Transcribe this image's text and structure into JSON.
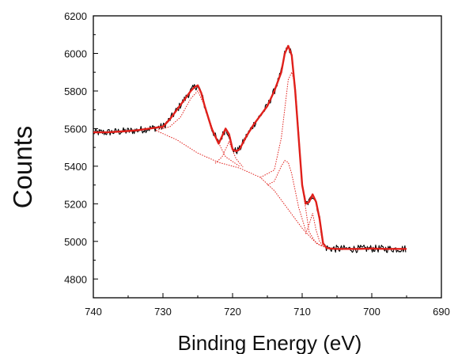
{
  "chart_data": {
    "type": "line",
    "title": "",
    "xlabel": "Binding Energy (eV)",
    "ylabel": "Counts",
    "x_reversed": true,
    "xlim": [
      740,
      690
    ],
    "ylim": [
      4700,
      6200
    ],
    "xticks": [
      "740",
      "730",
      "720",
      "710",
      "700",
      "690"
    ],
    "yticks": [
      "4800",
      "5000",
      "5200",
      "5400",
      "5600",
      "5800",
      "6000",
      "6200"
    ],
    "grid": false,
    "legend": "none",
    "colors": {
      "data": "#000000",
      "fit": "#e0201b",
      "components": "#e0201b"
    },
    "series": [
      {
        "style": "noisy-data",
        "x": [
          740,
          738,
          736,
          734,
          732,
          730,
          729,
          728,
          727,
          726,
          725.5,
          725,
          724.5,
          724,
          723,
          722,
          721.5,
          721,
          720.5,
          720,
          719.5,
          719,
          718,
          717,
          716,
          715,
          714,
          713,
          712.5,
          712,
          711.5,
          711,
          710.5,
          710,
          709.5,
          709,
          708.5,
          708,
          707.5,
          707,
          706.5,
          706,
          705,
          702,
          700,
          698,
          695
        ],
        "y": [
          5580,
          5580,
          5585,
          5590,
          5600,
          5610,
          5650,
          5700,
          5750,
          5800,
          5820,
          5830,
          5790,
          5720,
          5600,
          5520,
          5560,
          5600,
          5570,
          5490,
          5480,
          5490,
          5560,
          5620,
          5670,
          5720,
          5800,
          5900,
          6000,
          6040,
          5990,
          5800,
          5550,
          5300,
          5200,
          5210,
          5250,
          5210,
          5120,
          4990,
          4965,
          4962,
          4960,
          4960,
          4962,
          4960,
          4960
        ]
      },
      {
        "style": "fit-envelope",
        "x": [
          740,
          738,
          736,
          734,
          732,
          730,
          729,
          728,
          727,
          726,
          725.5,
          725,
          724.5,
          724,
          723,
          722,
          721.5,
          721,
          720.5,
          720,
          719.5,
          719,
          718,
          717,
          716,
          715,
          714,
          713,
          712.5,
          712,
          711.5,
          711,
          710.5,
          710,
          709.5,
          709,
          708.5,
          708,
          707.5,
          707,
          706.5,
          706,
          705,
          702,
          700,
          698,
          695
        ],
        "y": [
          5580,
          5580,
          5585,
          5590,
          5600,
          5610,
          5650,
          5700,
          5750,
          5800,
          5820,
          5830,
          5790,
          5720,
          5600,
          5520,
          5560,
          5600,
          5570,
          5490,
          5480,
          5490,
          5560,
          5620,
          5670,
          5720,
          5800,
          5900,
          6000,
          6040,
          5990,
          5800,
          5550,
          5300,
          5200,
          5210,
          5250,
          5210,
          5120,
          4990,
          4965,
          4962,
          4960,
          4960,
          4962,
          4960,
          4960
        ]
      },
      {
        "style": "background",
        "x": [
          731,
          728,
          725,
          722,
          719,
          716,
          714,
          712,
          710,
          708.5,
          707.5,
          706.5
        ],
        "y": [
          5590,
          5540,
          5470,
          5420,
          5390,
          5340,
          5270,
          5170,
          5070,
          5010,
          4980,
          4965
        ]
      },
      {
        "style": "component",
        "x": [
          731,
          729,
          727.5,
          726,
          725,
          724,
          722.5,
          721,
          719
        ],
        "y": [
          5590,
          5610,
          5660,
          5760,
          5800,
          5720,
          5560,
          5450,
          5400
        ]
      },
      {
        "style": "component",
        "x": [
          722.5,
          721.5,
          720.5,
          719.5,
          718.5
        ],
        "y": [
          5415,
          5450,
          5530,
          5440,
          5395
        ]
      },
      {
        "style": "component",
        "x": [
          716,
          714,
          713,
          712,
          711.5,
          711,
          710.5,
          710,
          709,
          708,
          707
        ],
        "y": [
          5340,
          5380,
          5550,
          5860,
          5900,
          5830,
          5580,
          5300,
          5050,
          4990,
          4975
        ]
      },
      {
        "style": "component",
        "x": [
          715,
          714,
          713,
          712.5,
          712,
          711.5,
          710.5,
          709.5
        ],
        "y": [
          5300,
          5320,
          5400,
          5430,
          5420,
          5360,
          5180,
          5060
        ]
      },
      {
        "style": "component",
        "x": [
          709.5,
          709,
          708.5,
          708,
          707.5,
          707
        ],
        "y": [
          5040,
          5090,
          5150,
          5060,
          5000,
          4975
        ]
      }
    ]
  }
}
